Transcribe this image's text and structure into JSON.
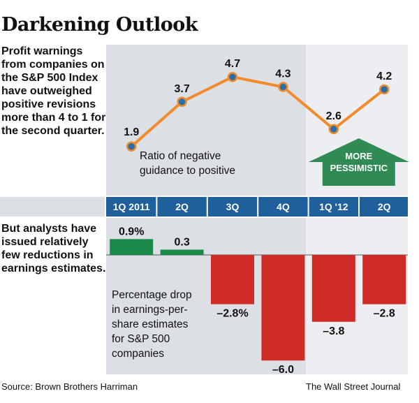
{
  "title": "Darkening Outlook",
  "top_text": "Profit warnings from companies on the S&P 500 Index have outweighed positive revisions more than 4 to 1 for the second quarter.",
  "bottom_text": "But analysts have issued relatively few reductions in earnings estimates.",
  "source": "Source: Brown Brothers Harriman",
  "credit": "The Wall Street Journal",
  "colors": {
    "line": "#f28b2c",
    "marker": "#2c6fa8",
    "positive": "#1c8a4b",
    "negative": "#cf2b27",
    "quarter_band": "#1f5f9b",
    "arrow": "#2f8b53"
  },
  "chart_data": [
    {
      "type": "line",
      "categories": [
        "1Q 2011",
        "2Q",
        "3Q",
        "4Q",
        "1Q '12",
        "2Q"
      ],
      "values": [
        1.9,
        3.7,
        4.7,
        4.3,
        2.6,
        4.2
      ],
      "value_labels": [
        "1.9",
        "3.7",
        "4.7",
        "4.3",
        "2.6",
        "4.2"
      ],
      "annotation_lines": [
        "Ratio of negative",
        "guidance to positive"
      ],
      "callout_lines": [
        "MORE",
        "PESSIMISTIC"
      ],
      "ylim": [
        1.5,
        5.1
      ]
    },
    {
      "type": "bar",
      "categories": [
        "1Q 2011",
        "2Q",
        "3Q",
        "4Q",
        "1Q '12",
        "2Q"
      ],
      "values": [
        0.9,
        0.3,
        -2.8,
        -6.0,
        -3.8,
        -2.8
      ],
      "value_labels": [
        "0.9%",
        "0.3",
        "–2.8%",
        "–6.0",
        "–3.8",
        "–2.8"
      ],
      "annotation_lines": [
        "Percentage drop",
        "in earnings-per-",
        "share estimates",
        "for S&P 500",
        "companies"
      ],
      "ylim": [
        -6.0,
        0.9
      ]
    }
  ]
}
